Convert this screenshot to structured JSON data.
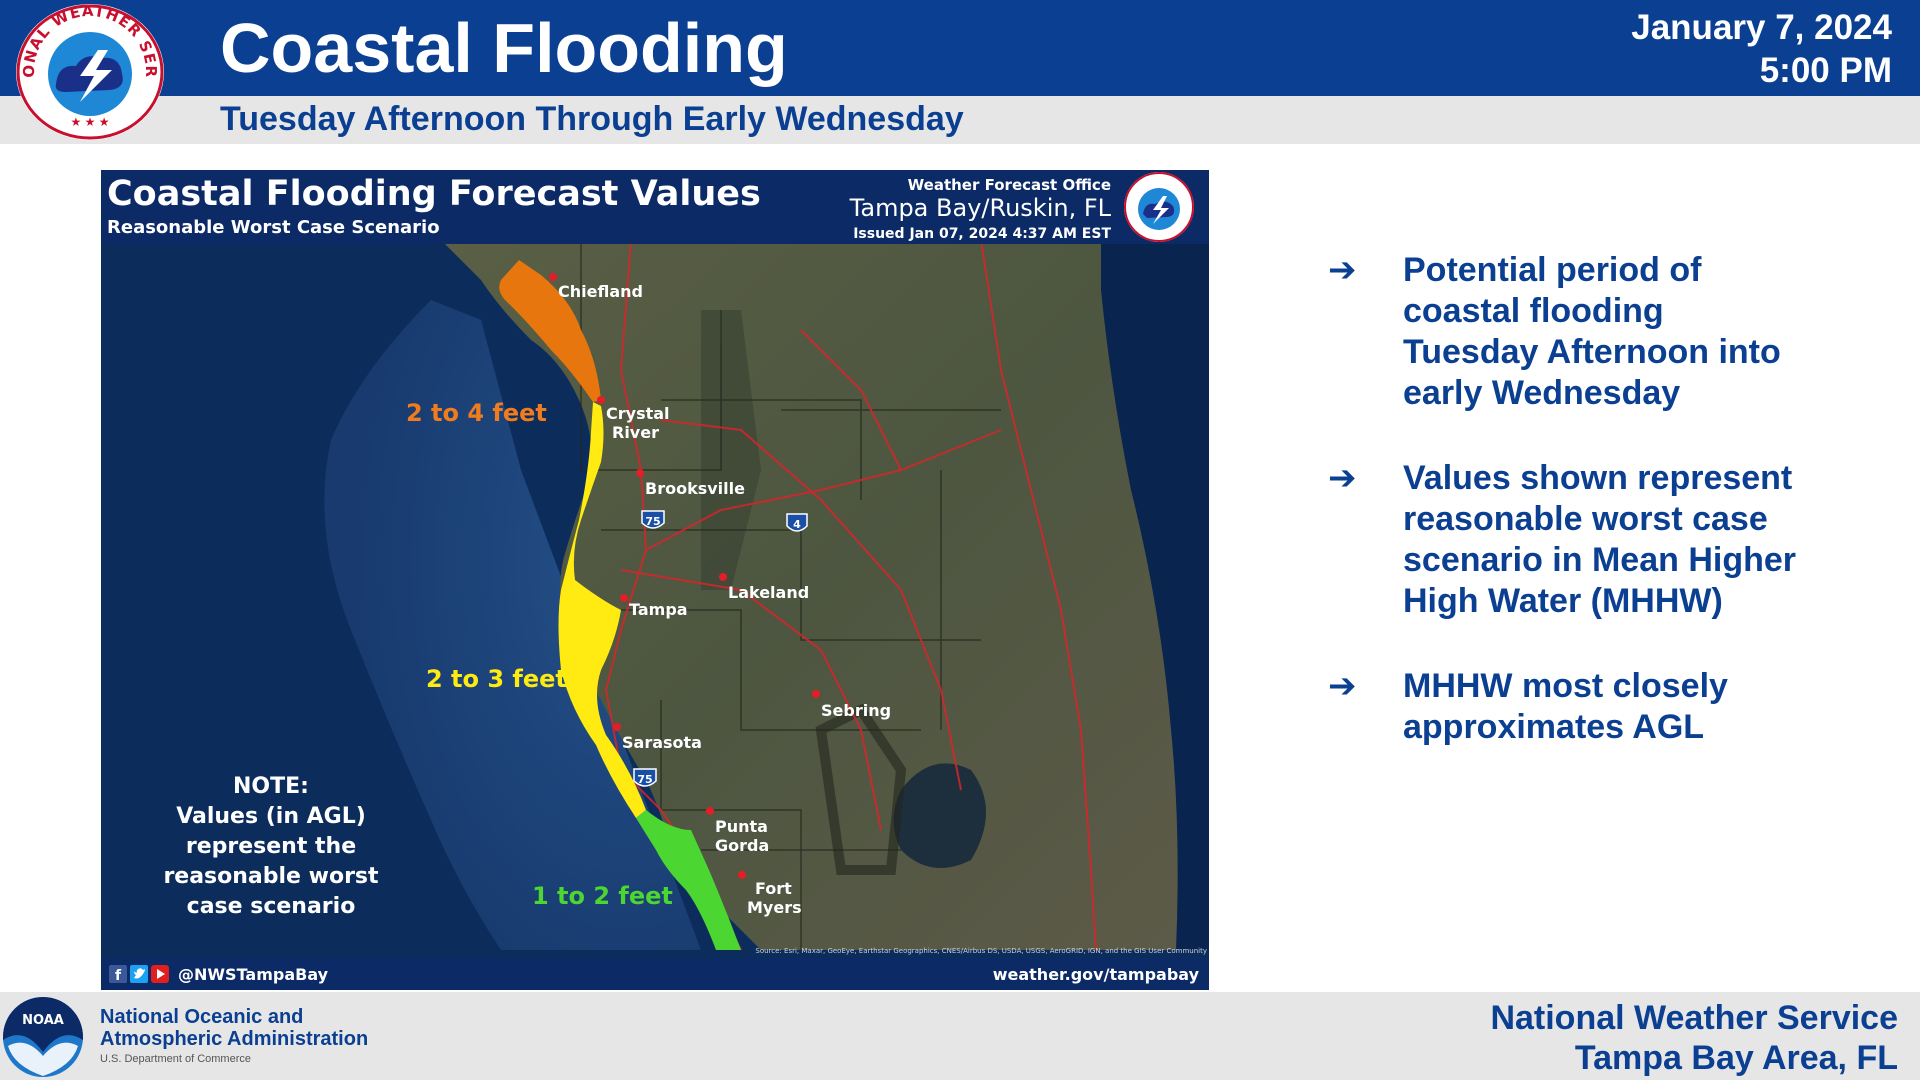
{
  "header": {
    "title": "Coastal Flooding",
    "subtitle": "Tuesday Afternoon Through Early Wednesday",
    "date": "January 7, 2024",
    "time": "5:00 PM",
    "logo_icon": "nws-logo-icon",
    "logo_text": "NATIONAL WEATHER SERVICE"
  },
  "map": {
    "title": "Coastal Flooding Forecast Values",
    "subtitle": "Reasonable Worst Case Scenario",
    "office_label": "Weather Forecast Office",
    "office_name": "Tampa Bay/Ruskin, FL",
    "issued": "Issued Jan 07, 2024 4:37 AM EST",
    "zones": [
      {
        "label": "2 to 4 feet",
        "color": "#e8760f"
      },
      {
        "label": "2 to 3 feet",
        "color": "#ffeb12"
      },
      {
        "label": "1 to 2 feet",
        "color": "#4cd631"
      }
    ],
    "cities": [
      "Chiefland",
      "Crystal",
      "River",
      "Brooksville",
      "Lakeland",
      "Tampa",
      "Sebring",
      "Sarasota",
      "Punta",
      "Gorda",
      "Fort",
      "Myers"
    ],
    "highways": [
      "75",
      "4",
      "75"
    ],
    "note": [
      "NOTE:",
      "Values (in AGL)",
      "represent the",
      "reasonable worst",
      "case scenario"
    ],
    "social_handle": "@NWSTampaBay",
    "social_icons": [
      "facebook-icon",
      "twitter-icon",
      "youtube-icon"
    ],
    "website": "weather.gov/tampabay",
    "source_credit": "Source: Esri, Maxar, GeoEye, Earthstar Geographics, CNES/Airbus DS, USDA, USGS, AeroGRID, IGN, and the GIS User Community"
  },
  "bullets": [
    [
      "Potential period of",
      "coastal flooding",
      "Tuesday Afternoon into",
      "early Wednesday"
    ],
    [
      "Values shown represent",
      "reasonable worst case",
      "scenario in Mean Higher",
      "High Water (MHHW)"
    ],
    [
      "MHHW most closely",
      "approximates AGL"
    ]
  ],
  "bullet_icon": "arrow-right-icon",
  "bullet_glyph": "➔",
  "footer": {
    "noaa_line1": "National Oceanic and",
    "noaa_line2": "Atmospheric Administration",
    "noaa_dept": "U.S. Department of Commerce",
    "noaa_logo_text": "NOAA",
    "nws_line1": "National Weather Service",
    "nws_line2": "Tampa Bay Area, FL"
  }
}
